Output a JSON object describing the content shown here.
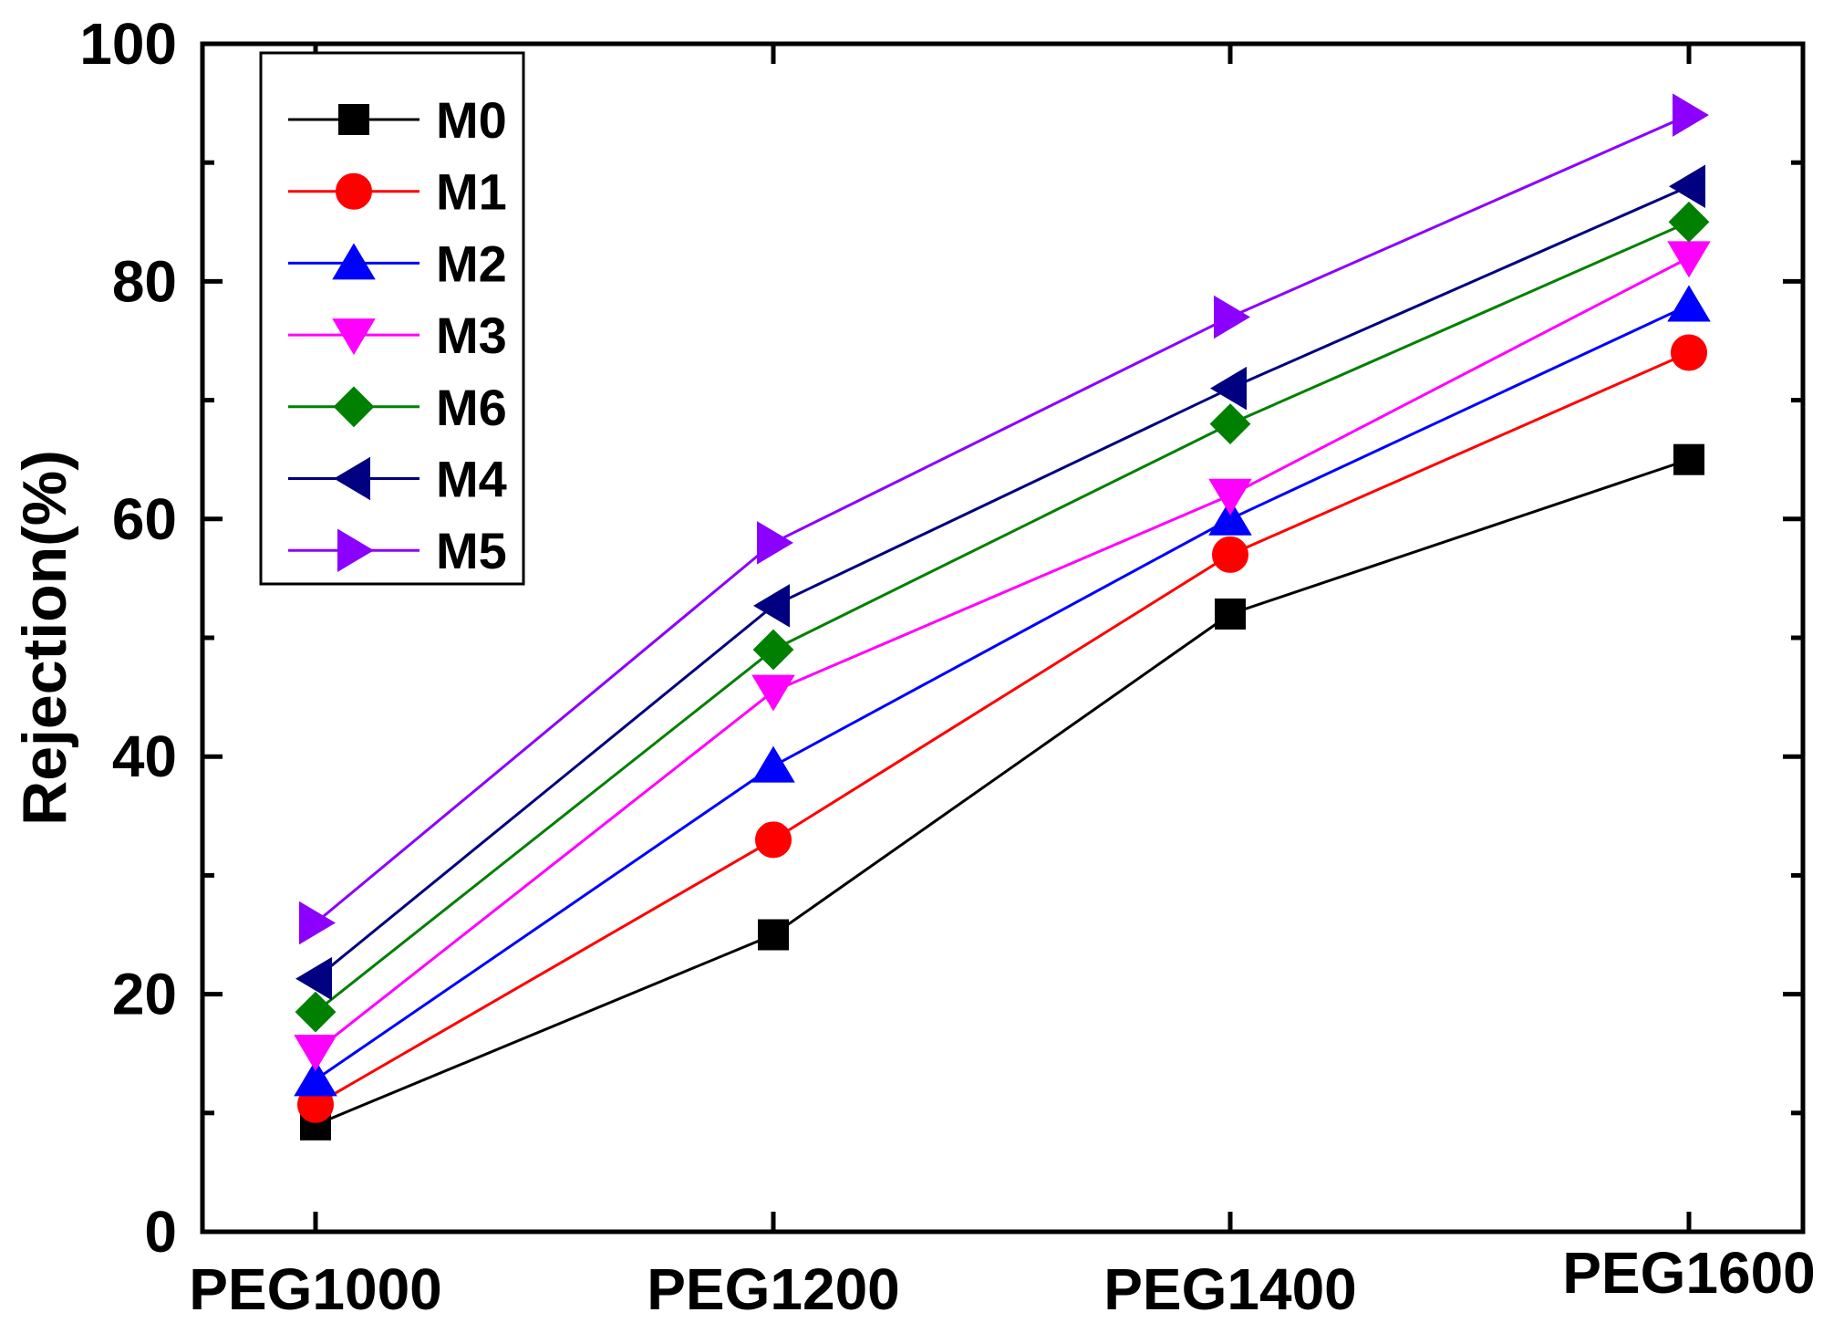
{
  "chart_data": {
    "type": "line",
    "title": "",
    "xlabel": "",
    "ylabel": "Rejection(%)",
    "categories": [
      "PEG1000",
      "PEG1200",
      "PEG1400",
      "PEG1600"
    ],
    "ylim": [
      0,
      100
    ],
    "y_major_ticks": [
      0,
      20,
      40,
      60,
      80,
      100
    ],
    "y_minor_ticks": [
      10,
      30,
      50,
      70,
      90
    ],
    "grid": false,
    "legend_position": "top-left",
    "series": [
      {
        "name": "M0",
        "values": [
          9,
          25,
          52,
          65
        ],
        "color": "#000000",
        "marker": "square"
      },
      {
        "name": "M1",
        "values": [
          10.7,
          33,
          57,
          74
        ],
        "color": "#ff0000",
        "marker": "circle"
      },
      {
        "name": "M2",
        "values": [
          12.8,
          39.2,
          60,
          78
        ],
        "color": "#0000ff",
        "marker": "triangle-up"
      },
      {
        "name": "M3",
        "values": [
          15.2,
          45.5,
          62,
          82
        ],
        "color": "#ff00ff",
        "marker": "triangle-down"
      },
      {
        "name": "M6",
        "values": [
          18.5,
          49,
          68,
          85
        ],
        "color": "#008000",
        "marker": "diamond"
      },
      {
        "name": "M4",
        "values": [
          21.3,
          52.7,
          71,
          88
        ],
        "color": "#000080",
        "marker": "triangle-left"
      },
      {
        "name": "M5",
        "values": [
          26,
          58,
          77,
          94
        ],
        "color": "#8b00ff",
        "marker": "triangle-right"
      }
    ]
  }
}
